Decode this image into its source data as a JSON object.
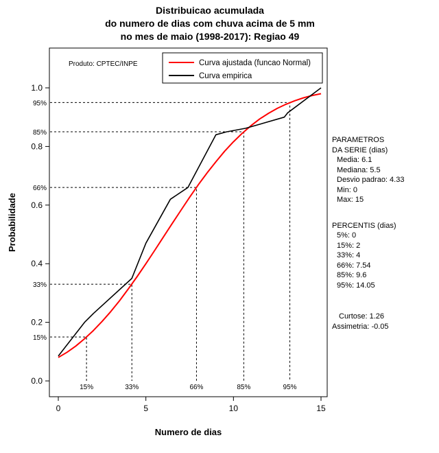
{
  "title": {
    "line1": "Distribuicao acumulada",
    "line2": "do numero de dias com chuva acima de 5 mm",
    "line3": "no mes de maio (1998-2017): Regiao 49"
  },
  "chart_data": {
    "type": "line",
    "title": "Distribuicao acumulada do numero de dias com chuva acima de 5 mm no mes de maio (1998-2017): Regiao 49",
    "xlabel": "Numero de dias",
    "ylabel": "Probabilidade",
    "xlim": [
      0,
      15
    ],
    "ylim": [
      0,
      1
    ],
    "x_ticks": [
      0,
      5,
      10,
      15
    ],
    "y_ticks": [
      0,
      0.2,
      0.4,
      0.6,
      0.8,
      1
    ],
    "grid": false,
    "legend_position": "top-inside",
    "annotation": "Produto: CPTEC/INPE",
    "legend": [
      {
        "label": "Curva ajustada (funcao Normal)",
        "color": "#ff0000"
      },
      {
        "label": "Curva empirica",
        "color": "#000000"
      }
    ],
    "series": [
      {
        "id": "fitted-normal",
        "name": "Curva ajustada (funcao Normal)",
        "color": "#ff0000",
        "width": 2,
        "points": [
          [
            0,
            0.08
          ],
          [
            0.5,
            0.098
          ],
          [
            1,
            0.119
          ],
          [
            1.5,
            0.144
          ],
          [
            2,
            0.172
          ],
          [
            2.5,
            0.203
          ],
          [
            3,
            0.237
          ],
          [
            3.5,
            0.274
          ],
          [
            4,
            0.314
          ],
          [
            4.5,
            0.356
          ],
          [
            5,
            0.4
          ],
          [
            5.5,
            0.445
          ],
          [
            6,
            0.491
          ],
          [
            6.5,
            0.537
          ],
          [
            7,
            0.582
          ],
          [
            7.5,
            0.627
          ],
          [
            8,
            0.67
          ],
          [
            8.5,
            0.71
          ],
          [
            9,
            0.748
          ],
          [
            9.5,
            0.784
          ],
          [
            10,
            0.816
          ],
          [
            10.5,
            0.845
          ],
          [
            11,
            0.871
          ],
          [
            11.5,
            0.894
          ],
          [
            12,
            0.913
          ],
          [
            12.5,
            0.93
          ],
          [
            13,
            0.944
          ],
          [
            13.5,
            0.956
          ],
          [
            14,
            0.966
          ],
          [
            14.5,
            0.974
          ],
          [
            15,
            0.98
          ]
        ]
      },
      {
        "id": "empirical",
        "name": "Curva empirica",
        "color": "#000000",
        "width": 1.6,
        "points": [
          [
            0,
            0.085
          ],
          [
            1.5,
            0.2
          ],
          [
            2,
            0.23
          ],
          [
            4.2,
            0.35
          ],
          [
            5,
            0.47
          ],
          [
            6.4,
            0.62
          ],
          [
            7.4,
            0.66
          ],
          [
            9,
            0.84
          ],
          [
            9.6,
            0.85
          ],
          [
            10.7,
            0.862
          ],
          [
            12.9,
            0.9
          ],
          [
            13.1,
            0.915
          ],
          [
            15,
            1.0
          ]
        ]
      }
    ],
    "percentile_guides": [
      {
        "label": "15%",
        "p": 0.15,
        "x": 1.61
      },
      {
        "label": "33%",
        "p": 0.33,
        "x": 4.2
      },
      {
        "label": "66%",
        "p": 0.66,
        "x": 7.89
      },
      {
        "label": "85%",
        "p": 0.85,
        "x": 10.59
      },
      {
        "label": "95%",
        "p": 0.95,
        "x": 13.22
      }
    ]
  },
  "stats": {
    "params_title1": "PARAMETROS",
    "params_title2": "DA SERIE (dias)",
    "params": [
      "Media: 6.1",
      "Mediana: 5.5",
      "Desvio padrao: 4.33",
      "Min: 0",
      "Max: 15"
    ],
    "percentis_title": "PERCENTIS (dias)",
    "percentis": [
      "5%: 0",
      "15%: 2",
      "33%: 4",
      "66%: 7.54",
      "85%: 9.6",
      "95%: 14.05"
    ],
    "curtose": "Curtose: 1.26",
    "assimetria": "Assimetria: -0.05"
  }
}
